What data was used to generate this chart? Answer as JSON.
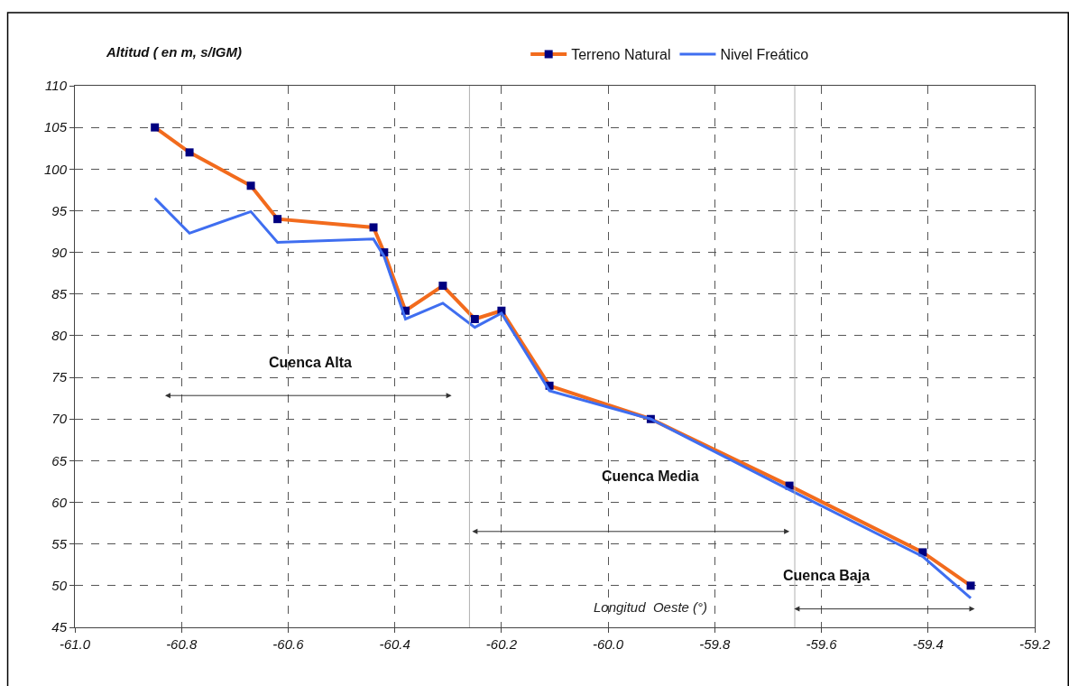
{
  "chart_data": {
    "type": "line",
    "ylabel": "Altitud ( en m, s/IGM)",
    "xlabel": "Longitud  Oeste (°)",
    "series": [
      {
        "name": "Terreno Natural",
        "color": "#f26b1d",
        "marker": "square",
        "x": [
          -60.85,
          -60.785,
          -60.67,
          -60.62,
          -60.44,
          -60.42,
          -60.38,
          -60.31,
          -60.25,
          -60.2,
          -60.11,
          -59.92,
          -59.66,
          -59.41,
          -59.32
        ],
        "values": [
          105,
          102,
          98,
          94,
          93,
          90,
          83,
          86,
          82,
          83,
          74,
          70,
          62,
          54,
          50
        ]
      },
      {
        "name": "Nivel Freático",
        "color": "#3f6ef0",
        "marker": "none",
        "x": [
          -60.85,
          -60.785,
          -60.67,
          -60.62,
          -60.44,
          -60.42,
          -60.38,
          -60.31,
          -60.25,
          -60.2,
          -60.11,
          -59.92,
          -59.66,
          -59.41,
          -59.32
        ],
        "values": [
          96.5,
          92.3,
          94.9,
          91.2,
          91.6,
          89.5,
          82,
          83.9,
          81,
          82.7,
          73.4,
          70,
          61.5,
          53.5,
          48.5
        ]
      }
    ],
    "xlim": [
      -61.0,
      -59.2
    ],
    "xticks": [
      {
        "value": -61.0,
        "label": "-61.0"
      },
      {
        "value": -60.8,
        "label": "-60.8"
      },
      {
        "value": -60.6,
        "label": "-60.6"
      },
      {
        "value": -60.4,
        "label": "-60.4"
      },
      {
        "value": -60.2,
        "label": "-60.2"
      },
      {
        "value": -60.0,
        "label": "-60.0"
      },
      {
        "value": -59.8,
        "label": "-59.8"
      },
      {
        "value": -59.6,
        "label": "-59.6"
      },
      {
        "value": -59.4,
        "label": "-59.4"
      },
      {
        "value": -59.2,
        "label": "-59.2"
      }
    ],
    "ylim": [
      45,
      110
    ],
    "yticks": [
      45,
      50,
      55,
      60,
      65,
      70,
      75,
      80,
      85,
      90,
      95,
      100,
      105,
      110
    ],
    "grid": true,
    "legend": "top",
    "line_style": "solid",
    "ref_lines": [
      {
        "axis": "x",
        "value": -60.26,
        "color": "#b0b0b0"
      },
      {
        "axis": "x",
        "value": -59.65,
        "color": "#b0b0b0"
      }
    ],
    "annotations": [
      "Cuenca Alta",
      "Cuenca Media",
      "Cuenca Baja"
    ]
  }
}
